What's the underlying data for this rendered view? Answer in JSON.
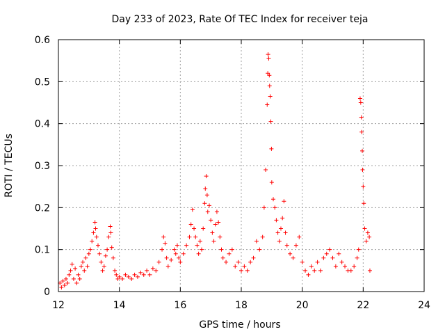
{
  "chart_data": {
    "type": "scatter",
    "title": "Day 233 of 2023, Rate Of TEC Index for receiver teja",
    "xlabel": "GPS time / hours",
    "ylabel": "ROTI / TECUs",
    "xlim": [
      12,
      24
    ],
    "ylim": [
      0,
      0.6
    ],
    "xticks": [
      12,
      14,
      16,
      18,
      20,
      22,
      24
    ],
    "yticks": [
      0,
      0.1,
      0.2,
      0.3,
      0.4,
      0.5,
      0.6
    ],
    "xtick_labels": [
      "12",
      "14",
      "16",
      "18",
      "20",
      "22",
      "24"
    ],
    "ytick_labels": [
      "0",
      "0.1",
      "0.2",
      "0.3",
      "0.4",
      "0.5",
      "0.6"
    ],
    "grid": true,
    "marker": "+",
    "marker_color": "#ff0000",
    "series": [
      {
        "points": [
          [
            12.05,
            0.02
          ],
          [
            12.1,
            0.01
          ],
          [
            12.15,
            0.025
          ],
          [
            12.2,
            0.015
          ],
          [
            12.25,
            0.03
          ],
          [
            12.3,
            0.02
          ],
          [
            12.35,
            0.04
          ],
          [
            12.4,
            0.05
          ],
          [
            12.45,
            0.065
          ],
          [
            12.5,
            0.03
          ],
          [
            12.55,
            0.055
          ],
          [
            12.6,
            0.02
          ],
          [
            12.65,
            0.04
          ],
          [
            12.7,
            0.03
          ],
          [
            12.75,
            0.06
          ],
          [
            12.8,
            0.07
          ],
          [
            12.85,
            0.05
          ],
          [
            12.9,
            0.08
          ],
          [
            12.95,
            0.06
          ],
          [
            13.0,
            0.09
          ],
          [
            13.05,
            0.1
          ],
          [
            13.1,
            0.12
          ],
          [
            13.15,
            0.14
          ],
          [
            13.2,
            0.165
          ],
          [
            13.22,
            0.15
          ],
          [
            13.25,
            0.13
          ],
          [
            13.3,
            0.11
          ],
          [
            13.35,
            0.09
          ],
          [
            13.4,
            0.07
          ],
          [
            13.45,
            0.05
          ],
          [
            13.5,
            0.06
          ],
          [
            13.55,
            0.085
          ],
          [
            13.6,
            0.1
          ],
          [
            13.65,
            0.13
          ],
          [
            13.7,
            0.155
          ],
          [
            13.72,
            0.14
          ],
          [
            13.75,
            0.105
          ],
          [
            13.8,
            0.08
          ],
          [
            13.85,
            0.05
          ],
          [
            13.9,
            0.04
          ],
          [
            13.95,
            0.03
          ],
          [
            14.0,
            0.035
          ],
          [
            14.1,
            0.03
          ],
          [
            14.2,
            0.04
          ],
          [
            14.3,
            0.035
          ],
          [
            14.4,
            0.03
          ],
          [
            14.5,
            0.04
          ],
          [
            14.6,
            0.035
          ],
          [
            14.7,
            0.045
          ],
          [
            14.8,
            0.04
          ],
          [
            14.9,
            0.05
          ],
          [
            15.0,
            0.04
          ],
          [
            15.1,
            0.055
          ],
          [
            15.2,
            0.05
          ],
          [
            15.3,
            0.07
          ],
          [
            15.4,
            0.1
          ],
          [
            15.45,
            0.13
          ],
          [
            15.5,
            0.115
          ],
          [
            15.55,
            0.08
          ],
          [
            15.6,
            0.06
          ],
          [
            15.7,
            0.075
          ],
          [
            15.8,
            0.1
          ],
          [
            15.85,
            0.09
          ],
          [
            15.9,
            0.11
          ],
          [
            15.95,
            0.08
          ],
          [
            16.0,
            0.07
          ],
          [
            16.1,
            0.09
          ],
          [
            16.2,
            0.11
          ],
          [
            16.3,
            0.13
          ],
          [
            16.35,
            0.16
          ],
          [
            16.4,
            0.195
          ],
          [
            16.45,
            0.15
          ],
          [
            16.5,
            0.13
          ],
          [
            16.55,
            0.11
          ],
          [
            16.6,
            0.09
          ],
          [
            16.65,
            0.12
          ],
          [
            16.7,
            0.1
          ],
          [
            16.75,
            0.15
          ],
          [
            16.8,
            0.21
          ],
          [
            16.82,
            0.245
          ],
          [
            16.85,
            0.275
          ],
          [
            16.88,
            0.23
          ],
          [
            16.9,
            0.19
          ],
          [
            16.95,
            0.205
          ],
          [
            17.0,
            0.17
          ],
          [
            17.05,
            0.14
          ],
          [
            17.1,
            0.12
          ],
          [
            17.15,
            0.16
          ],
          [
            17.2,
            0.19
          ],
          [
            17.25,
            0.165
          ],
          [
            17.3,
            0.13
          ],
          [
            17.35,
            0.1
          ],
          [
            17.4,
            0.08
          ],
          [
            17.5,
            0.07
          ],
          [
            17.6,
            0.09
          ],
          [
            17.7,
            0.1
          ],
          [
            17.8,
            0.06
          ],
          [
            17.9,
            0.07
          ],
          [
            18.0,
            0.05
          ],
          [
            18.1,
            0.06
          ],
          [
            18.2,
            0.05
          ],
          [
            18.3,
            0.07
          ],
          [
            18.4,
            0.08
          ],
          [
            18.5,
            0.12
          ],
          [
            18.6,
            0.1
          ],
          [
            18.7,
            0.13
          ],
          [
            18.75,
            0.2
          ],
          [
            18.8,
            0.29
          ],
          [
            18.85,
            0.445
          ],
          [
            18.87,
            0.52
          ],
          [
            18.88,
            0.565
          ],
          [
            18.9,
            0.555
          ],
          [
            18.92,
            0.515
          ],
          [
            18.93,
            0.49
          ],
          [
            18.95,
            0.465
          ],
          [
            18.97,
            0.405
          ],
          [
            18.99,
            0.34
          ],
          [
            19.0,
            0.26
          ],
          [
            19.05,
            0.22
          ],
          [
            19.1,
            0.2
          ],
          [
            19.15,
            0.17
          ],
          [
            19.2,
            0.14
          ],
          [
            19.25,
            0.12
          ],
          [
            19.3,
            0.15
          ],
          [
            19.35,
            0.175
          ],
          [
            19.4,
            0.215
          ],
          [
            19.45,
            0.14
          ],
          [
            19.5,
            0.11
          ],
          [
            19.6,
            0.09
          ],
          [
            19.7,
            0.08
          ],
          [
            19.8,
            0.11
          ],
          [
            19.9,
            0.13
          ],
          [
            20.0,
            0.07
          ],
          [
            20.1,
            0.05
          ],
          [
            20.2,
            0.04
          ],
          [
            20.3,
            0.06
          ],
          [
            20.4,
            0.05
          ],
          [
            20.5,
            0.07
          ],
          [
            20.6,
            0.05
          ],
          [
            20.7,
            0.08
          ],
          [
            20.8,
            0.09
          ],
          [
            20.9,
            0.1
          ],
          [
            21.0,
            0.08
          ],
          [
            21.1,
            0.06
          ],
          [
            21.2,
            0.09
          ],
          [
            21.3,
            0.07
          ],
          [
            21.4,
            0.06
          ],
          [
            21.5,
            0.05
          ],
          [
            21.6,
            0.05
          ],
          [
            21.7,
            0.06
          ],
          [
            21.8,
            0.08
          ],
          [
            21.85,
            0.1
          ],
          [
            21.9,
            0.46
          ],
          [
            21.92,
            0.45
          ],
          [
            21.94,
            0.415
          ],
          [
            21.95,
            0.38
          ],
          [
            21.97,
            0.335
          ],
          [
            21.98,
            0.29
          ],
          [
            22.0,
            0.25
          ],
          [
            22.02,
            0.21
          ],
          [
            22.05,
            0.15
          ],
          [
            22.1,
            0.12
          ],
          [
            22.15,
            0.14
          ],
          [
            22.2,
            0.13
          ],
          [
            22.22,
            0.05
          ]
        ]
      }
    ]
  }
}
